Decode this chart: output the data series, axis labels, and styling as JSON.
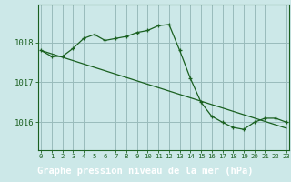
{
  "bg_color": "#cce8e8",
  "plot_bg_color": "#cce8e8",
  "label_bg_color": "#4a7a4a",
  "grid_color": "#99bbbb",
  "line_color": "#1a6020",
  "line1_x": [
    0,
    1,
    2,
    3,
    4,
    5,
    6,
    7,
    8,
    9,
    10,
    11,
    12,
    13,
    14,
    15,
    16,
    17,
    18,
    19,
    20,
    21,
    22,
    23
  ],
  "line1_y": [
    1017.8,
    1017.65,
    1017.65,
    1017.85,
    1018.1,
    1018.2,
    1018.05,
    1018.1,
    1018.15,
    1018.25,
    1018.3,
    1018.42,
    1018.45,
    1017.8,
    1017.1,
    1016.5,
    1016.15,
    1016.0,
    1015.87,
    1015.82,
    1016.0,
    1016.1,
    1016.1,
    1016.0
  ],
  "line2_x": [
    0,
    23
  ],
  "line2_y": [
    1017.8,
    1015.85
  ],
  "xlabel": "Graphe pression niveau de la mer (hPa)",
  "xtick_labels": [
    "0",
    "1",
    "2",
    "3",
    "4",
    "5",
    "6",
    "7",
    "8",
    "9",
    "10",
    "11",
    "12",
    "13",
    "14",
    "15",
    "16",
    "17",
    "18",
    "19",
    "20",
    "21",
    "22",
    "23"
  ],
  "yticks": [
    1016,
    1017,
    1018
  ],
  "ylim": [
    1015.3,
    1018.95
  ],
  "xlim": [
    -0.3,
    23.3
  ]
}
